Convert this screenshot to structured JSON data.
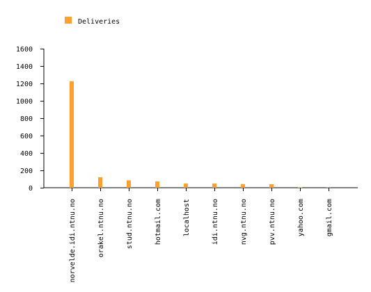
{
  "chart_data": {
    "type": "bar",
    "title": "",
    "xlabel": "",
    "ylabel": "",
    "categories": [
      "norvelde.idi.ntnu.no",
      "orakel.ntnu.no",
      "stud.ntnu.no",
      "hotmail.com",
      "localhost",
      "idi.ntnu.no",
      "nvg.ntnu.no",
      "pvv.ntnu.no",
      "yahoo.com",
      "gmail.com"
    ],
    "series": [
      {
        "name": "Deliveries",
        "color": "#ff9f2f",
        "values": [
          1225,
          120,
          85,
          72,
          48,
          48,
          42,
          40,
          5,
          2
        ]
      }
    ],
    "ylim": [
      0,
      1600
    ],
    "yticks": [
      0,
      200,
      400,
      600,
      800,
      1000,
      1200,
      1400,
      1600
    ],
    "grid": false,
    "legend_position": "top-left"
  }
}
